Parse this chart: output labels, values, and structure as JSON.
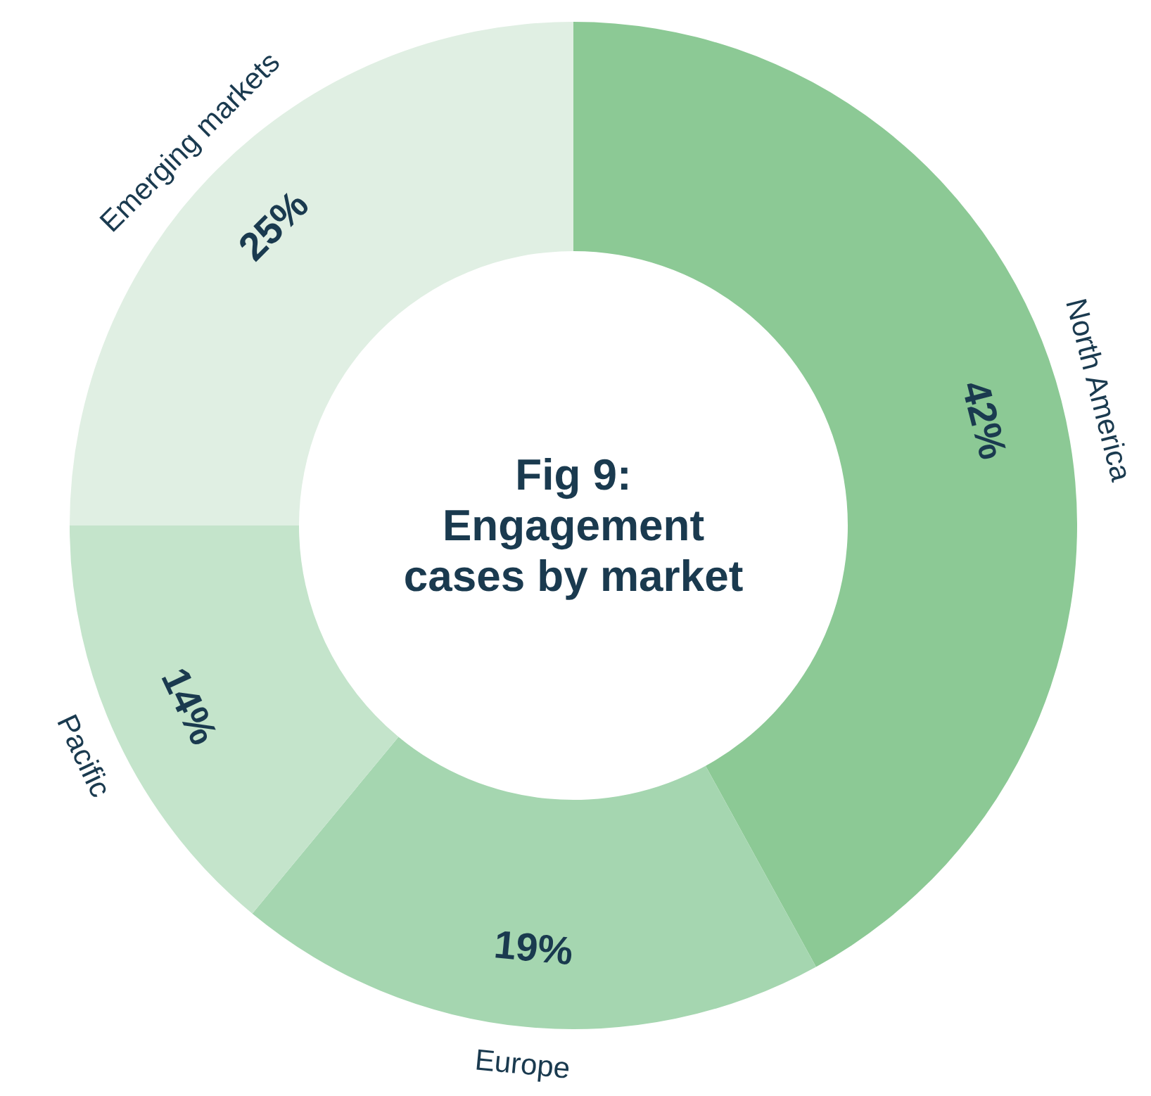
{
  "chart_data": {
    "type": "donut",
    "title": "Fig 9: Engagement cases by market",
    "categories": [
      "North America",
      "Europe",
      "Pacific",
      "Emerging markets"
    ],
    "values": [
      42,
      19,
      14,
      25
    ],
    "value_labels": [
      "42%",
      "19%",
      "14%",
      "25%"
    ],
    "colors": [
      "#8cc995",
      "#a5d6b0",
      "#c4e4cb",
      "#e0efe3"
    ]
  }
}
